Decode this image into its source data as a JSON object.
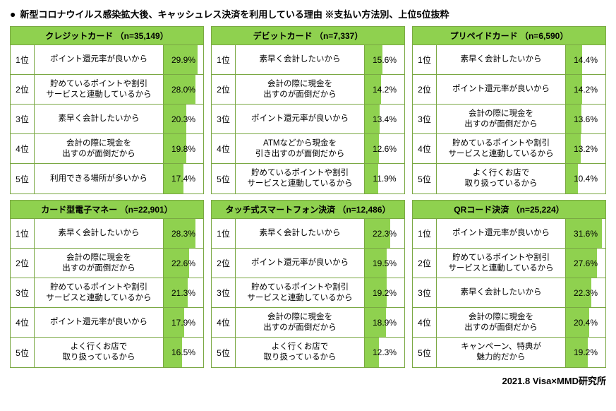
{
  "title": "新型コロナウイルス感染拡大後、キャッシュレス決済を利用している理由 ※支払い方法別、上位5位抜粋",
  "footer": "2021.8 Visa×MMD研究所",
  "colors": {
    "header_bg": "#8fd14f",
    "bar_bg": "#8fd14f",
    "border": "#7aa843",
    "text": "#000000",
    "bg": "#ffffff"
  },
  "max_pct": 35,
  "panels": [
    {
      "header": "クレジットカード （n=35,149）",
      "rows": [
        {
          "rank": "1位",
          "reason": "ポイント還元率が良いから",
          "pct": 29.9
        },
        {
          "rank": "2位",
          "reason": "貯めているポイントや割引\nサービスと連動しているから",
          "pct": 28.0
        },
        {
          "rank": "3位",
          "reason": "素早く会計したいから",
          "pct": 20.3
        },
        {
          "rank": "4位",
          "reason": "会計の際に現金を\n出すのが面倒だから",
          "pct": 19.8
        },
        {
          "rank": "5位",
          "reason": "利用できる場所が多いから",
          "pct": 17.4
        }
      ]
    },
    {
      "header": "デビットカード （n=7,337）",
      "rows": [
        {
          "rank": "1位",
          "reason": "素早く会計したいから",
          "pct": 15.6
        },
        {
          "rank": "2位",
          "reason": "会計の際に現金を\n出すのが面倒だから",
          "pct": 14.2
        },
        {
          "rank": "3位",
          "reason": "ポイント還元率が良いから",
          "pct": 13.4
        },
        {
          "rank": "4位",
          "reason": "ATMなどから現金を\n引き出すのが面倒だから",
          "pct": 12.6
        },
        {
          "rank": "5位",
          "reason": "貯めているポイントや割引\nサービスと連動しているから",
          "pct": 11.9
        }
      ]
    },
    {
      "header": "プリペイドカード （n=6,590）",
      "rows": [
        {
          "rank": "1位",
          "reason": "素早く会計したいから",
          "pct": 14.4
        },
        {
          "rank": "2位",
          "reason": "ポイント還元率が良いから",
          "pct": 14.2
        },
        {
          "rank": "3位",
          "reason": "会計の際に現金を\n出すのが面倒だから",
          "pct": 13.6
        },
        {
          "rank": "4位",
          "reason": "貯めているポイントや割引\nサービスと連動しているから",
          "pct": 13.2
        },
        {
          "rank": "5位",
          "reason": "よく行くお店で\n取り扱っているから",
          "pct": 10.4
        }
      ]
    },
    {
      "header": "カード型電子マネー （n=22,901）",
      "rows": [
        {
          "rank": "1位",
          "reason": "素早く会計したいから",
          "pct": 28.3
        },
        {
          "rank": "2位",
          "reason": "会計の際に現金を\n出すのが面倒だから",
          "pct": 22.6
        },
        {
          "rank": "3位",
          "reason": "貯めているポイントや割引\nサービスと連動しているから",
          "pct": 21.3
        },
        {
          "rank": "4位",
          "reason": "ポイント還元率が良いから",
          "pct": 17.9
        },
        {
          "rank": "5位",
          "reason": "よく行くお店で\n取り扱っているから",
          "pct": 16.5
        }
      ]
    },
    {
      "header": "タッチ式スマートフォン決済 （n=12,486）",
      "rows": [
        {
          "rank": "1位",
          "reason": "素早く会計したいから",
          "pct": 22.3
        },
        {
          "rank": "2位",
          "reason": "ポイント還元率が良いから",
          "pct": 19.5
        },
        {
          "rank": "3位",
          "reason": "貯めているポイントや割引\nサービスと連動しているから",
          "pct": 19.2
        },
        {
          "rank": "4位",
          "reason": "会計の際に現金を\n出すのが面倒だから",
          "pct": 18.9
        },
        {
          "rank": "5位",
          "reason": "よく行くお店で\n取り扱っているから",
          "pct": 12.3
        }
      ]
    },
    {
      "header": "QRコード決済 （n=25,224）",
      "rows": [
        {
          "rank": "1位",
          "reason": "ポイント還元率が良いから",
          "pct": 31.6
        },
        {
          "rank": "2位",
          "reason": "貯めているポイントや割引\nサービスと連動しているから",
          "pct": 27.6
        },
        {
          "rank": "3位",
          "reason": "素早く会計したいから",
          "pct": 22.3
        },
        {
          "rank": "4位",
          "reason": "会計の際に現金を\n出すのが面倒だから",
          "pct": 20.4
        },
        {
          "rank": "5位",
          "reason": "キャンペーン、特典が\n魅力的だから",
          "pct": 19.2
        }
      ]
    }
  ]
}
